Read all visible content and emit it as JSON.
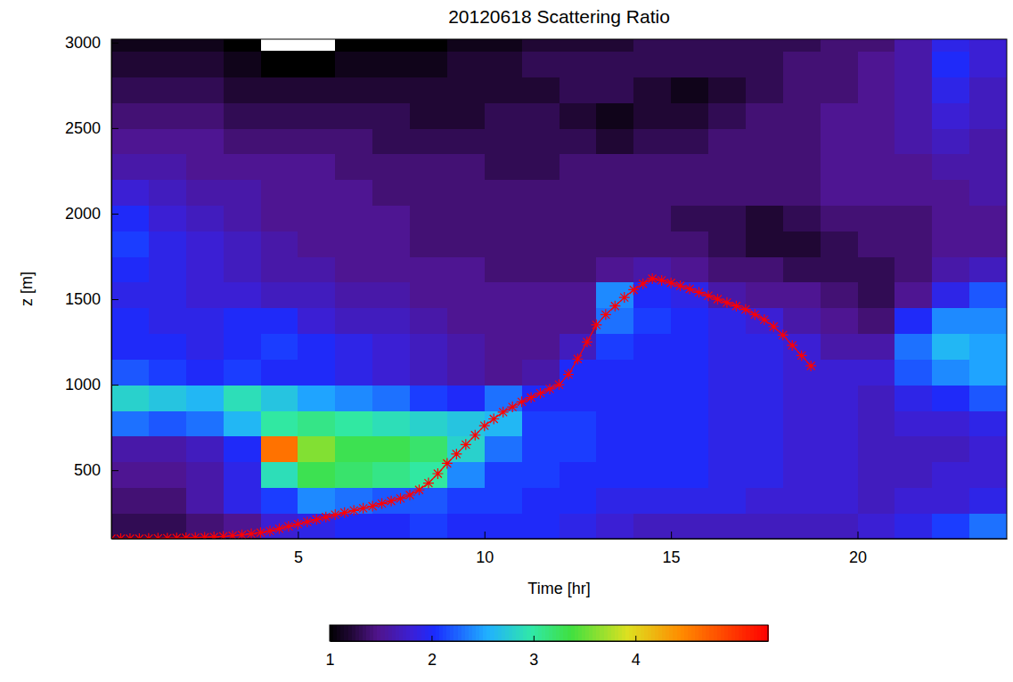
{
  "chart_data": {
    "type": "heatmap",
    "title": "20120618 Scattering Ratio",
    "x_label": "Time [hr]",
    "y_label": "z [m]",
    "xlim": [
      0,
      24
    ],
    "ylim": [
      100,
      3020
    ],
    "xticks": [
      5,
      10,
      15,
      20
    ],
    "yticks": [
      500,
      1000,
      1500,
      2000,
      2500,
      3000
    ],
    "heatmap": {
      "x_edges": [
        0,
        1,
        2,
        3,
        4,
        5,
        6,
        7,
        8,
        9,
        10,
        11,
        12,
        13,
        14,
        15,
        16,
        17,
        18,
        19,
        20,
        21,
        22,
        23,
        24
      ],
      "y_edges": [
        100,
        250,
        400,
        550,
        700,
        850,
        1000,
        1150,
        1300,
        1450,
        1600,
        1750,
        1900,
        2050,
        2200,
        2350,
        2500,
        2650,
        2800,
        2950,
        3100
      ],
      "z": [
        [
          1.3,
          1.3,
          1.4,
          1.5,
          1.8,
          1.9,
          2.0,
          2.0,
          2.1,
          2.0,
          2.0,
          2.0,
          1.9,
          1.8,
          1.7,
          1.7,
          1.7,
          1.7,
          1.7,
          1.7,
          1.8,
          1.9,
          2.1,
          2.3
        ],
        [
          1.4,
          1.4,
          1.6,
          1.9,
          2.1,
          2.4,
          2.3,
          2.2,
          2.2,
          2.1,
          2.1,
          2.0,
          2.0,
          1.9,
          1.9,
          1.9,
          1.9,
          1.8,
          1.8,
          1.8,
          1.7,
          1.8,
          1.8,
          1.9
        ],
        [
          1.5,
          1.5,
          1.6,
          1.9,
          2.9,
          3.3,
          3.2,
          3.1,
          3.0,
          2.4,
          2.1,
          2.1,
          2.0,
          2.0,
          2.0,
          2.0,
          1.9,
          1.9,
          1.8,
          1.8,
          1.7,
          1.7,
          1.8,
          1.8
        ],
        [
          1.6,
          1.6,
          1.7,
          2.0,
          4.6,
          3.6,
          3.3,
          3.3,
          3.2,
          2.8,
          2.3,
          2.1,
          2.1,
          2.0,
          2.0,
          2.0,
          1.9,
          1.9,
          1.8,
          1.8,
          1.7,
          1.7,
          1.7,
          1.8
        ],
        [
          2.3,
          2.2,
          2.3,
          2.6,
          3.0,
          3.1,
          3.0,
          2.9,
          2.8,
          2.7,
          2.6,
          2.1,
          2.1,
          2.0,
          2.0,
          2.0,
          1.9,
          1.9,
          1.8,
          1.8,
          1.7,
          1.8,
          1.8,
          1.9
        ],
        [
          2.8,
          2.7,
          2.6,
          2.9,
          2.7,
          2.5,
          2.4,
          2.3,
          2.1,
          2.0,
          2.3,
          2.0,
          2.0,
          2.0,
          2.0,
          2.0,
          1.9,
          1.9,
          1.8,
          1.8,
          1.7,
          1.9,
          2.0,
          2.2
        ],
        [
          2.2,
          2.1,
          2.0,
          2.1,
          2.0,
          2.0,
          1.9,
          1.8,
          1.7,
          1.6,
          1.5,
          1.6,
          2.0,
          2.0,
          2.0,
          2.0,
          1.9,
          1.9,
          1.8,
          1.8,
          1.8,
          2.2,
          2.4,
          2.5
        ],
        [
          2.0,
          2.0,
          1.9,
          2.0,
          2.1,
          2.0,
          1.9,
          1.8,
          1.7,
          1.6,
          1.5,
          1.5,
          1.7,
          2.1,
          2.0,
          2.0,
          1.9,
          1.9,
          1.8,
          1.6,
          1.6,
          2.3,
          2.6,
          2.5
        ],
        [
          2.0,
          1.9,
          1.9,
          2.0,
          2.0,
          1.8,
          1.7,
          1.7,
          1.6,
          1.5,
          1.5,
          1.5,
          1.5,
          2.3,
          2.1,
          2.0,
          1.9,
          1.8,
          1.6,
          1.5,
          1.4,
          2.0,
          2.4,
          2.4
        ],
        [
          1.9,
          1.9,
          1.8,
          1.8,
          1.7,
          1.7,
          1.6,
          1.6,
          1.5,
          1.5,
          1.5,
          1.5,
          1.5,
          2.4,
          2.0,
          1.9,
          1.6,
          1.5,
          1.5,
          1.4,
          1.3,
          1.5,
          1.9,
          2.2
        ],
        [
          2.0,
          1.9,
          1.8,
          1.7,
          1.6,
          1.6,
          1.5,
          1.5,
          1.5,
          1.5,
          1.4,
          1.4,
          1.4,
          1.5,
          1.6,
          1.5,
          1.4,
          1.4,
          1.3,
          1.3,
          1.3,
          1.4,
          1.6,
          1.7
        ],
        [
          2.1,
          1.9,
          1.8,
          1.7,
          1.6,
          1.5,
          1.5,
          1.5,
          1.4,
          1.4,
          1.4,
          1.4,
          1.4,
          1.4,
          1.4,
          1.4,
          1.3,
          1.2,
          1.2,
          1.3,
          1.4,
          1.4,
          1.5,
          1.5
        ],
        [
          2.0,
          1.8,
          1.7,
          1.6,
          1.5,
          1.5,
          1.5,
          1.5,
          1.4,
          1.4,
          1.4,
          1.4,
          1.4,
          1.4,
          1.4,
          1.3,
          1.3,
          1.2,
          1.3,
          1.4,
          1.4,
          1.4,
          1.5,
          1.5
        ],
        [
          1.8,
          1.7,
          1.6,
          1.6,
          1.5,
          1.5,
          1.5,
          1.4,
          1.4,
          1.4,
          1.4,
          1.4,
          1.4,
          1.4,
          1.4,
          1.4,
          1.4,
          1.4,
          1.4,
          1.5,
          1.5,
          1.5,
          1.5,
          1.6
        ],
        [
          1.6,
          1.6,
          1.5,
          1.5,
          1.5,
          1.5,
          1.4,
          1.4,
          1.4,
          1.4,
          1.3,
          1.3,
          1.4,
          1.4,
          1.4,
          1.4,
          1.4,
          1.4,
          1.4,
          1.5,
          1.5,
          1.5,
          1.6,
          1.6
        ],
        [
          1.5,
          1.5,
          1.5,
          1.4,
          1.4,
          1.4,
          1.4,
          1.3,
          1.3,
          1.3,
          1.3,
          1.3,
          1.3,
          1.2,
          1.3,
          1.3,
          1.4,
          1.4,
          1.4,
          1.5,
          1.5,
          1.6,
          1.7,
          1.6
        ],
        [
          1.4,
          1.4,
          1.4,
          1.3,
          1.3,
          1.3,
          1.3,
          1.3,
          1.2,
          1.2,
          1.3,
          1.3,
          1.2,
          1.1,
          1.2,
          1.2,
          1.3,
          1.4,
          1.4,
          1.5,
          1.5,
          1.6,
          1.8,
          1.7
        ],
        [
          1.3,
          1.3,
          1.3,
          1.2,
          1.2,
          1.2,
          1.2,
          1.2,
          1.2,
          1.2,
          1.2,
          1.2,
          1.3,
          1.3,
          1.2,
          1.1,
          1.2,
          1.3,
          1.4,
          1.4,
          1.5,
          1.6,
          1.9,
          1.7
        ],
        [
          1.2,
          1.2,
          1.2,
          1.1,
          1.0,
          1.0,
          1.1,
          1.1,
          1.1,
          1.2,
          1.2,
          1.3,
          1.3,
          1.3,
          1.3,
          1.3,
          1.3,
          1.3,
          1.4,
          1.4,
          1.5,
          1.6,
          2.0,
          1.8
        ],
        [
          1.1,
          1.1,
          1.1,
          1.0,
          null,
          null,
          1.0,
          1.0,
          1.0,
          1.1,
          1.1,
          1.2,
          1.2,
          1.2,
          1.3,
          1.3,
          1.3,
          1.3,
          1.3,
          1.4,
          1.4,
          1.6,
          1.9,
          1.8
        ]
      ]
    },
    "colorbar": {
      "range": [
        1,
        5.3
      ],
      "ticks": [
        1,
        2,
        3,
        4
      ]
    },
    "series": [
      {
        "type": "line",
        "color": "#ff0000",
        "marker": "asterisk",
        "x": [
          0,
          0.25,
          0.5,
          0.75,
          1,
          1.25,
          1.5,
          1.75,
          2,
          2.25,
          2.5,
          2.75,
          3,
          3.25,
          3.5,
          3.75,
          4,
          4.25,
          4.5,
          4.75,
          5,
          5.25,
          5.5,
          5.75,
          6,
          6.25,
          6.5,
          6.75,
          7,
          7.25,
          7.5,
          7.75,
          8,
          8.25,
          8.5,
          8.75,
          9,
          9.25,
          9.5,
          9.75,
          10,
          10.25,
          10.5,
          10.75,
          11,
          11.25,
          11.5,
          11.75,
          12,
          12.25,
          12.5,
          12.75,
          13,
          13.25,
          13.5,
          13.75,
          14,
          14.25,
          14.5,
          14.75,
          15,
          15.25,
          15.5,
          15.75,
          16,
          16.25,
          16.5,
          16.75,
          17,
          17.25,
          17.5,
          17.75,
          18,
          18.25,
          18.5,
          18.75
        ],
        "values": [
          100,
          100,
          100,
          100,
          101,
          102,
          103,
          104,
          105,
          106,
          108,
          110,
          113,
          117,
          122,
          128,
          135,
          145,
          158,
          172,
          185,
          198,
          212,
          226,
          240,
          252,
          265,
          278,
          290,
          305,
          320,
          335,
          355,
          385,
          425,
          480,
          540,
          595,
          650,
          705,
          760,
          800,
          840,
          870,
          900,
          925,
          950,
          975,
          1000,
          1060,
          1150,
          1250,
          1350,
          1410,
          1460,
          1510,
          1555,
          1590,
          1620,
          1610,
          1595,
          1578,
          1560,
          1540,
          1520,
          1500,
          1480,
          1460,
          1440,
          1410,
          1380,
          1340,
          1290,
          1230,
          1170,
          1110
        ]
      }
    ]
  }
}
